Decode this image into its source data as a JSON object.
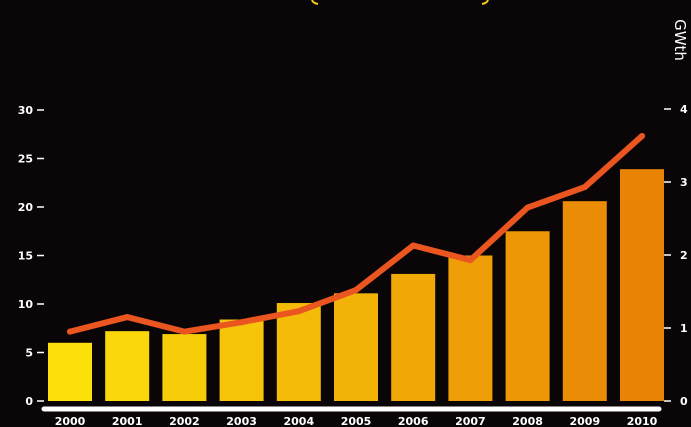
{
  "chart_data": {
    "type": "bar",
    "categories": [
      "2000",
      "2001",
      "2002",
      "2003",
      "2004",
      "2005",
      "2006",
      "2007",
      "2008",
      "2009",
      "2010"
    ],
    "series": [
      {
        "type": "bar",
        "axis": "left",
        "values": [
          6,
          7.2,
          6.9,
          8.4,
          10.1,
          11.1,
          13.1,
          15,
          17.5,
          20.6,
          23.9
        ]
      },
      {
        "type": "line",
        "axis": "right",
        "values": [
          0.95,
          1.15,
          0.95,
          1.08,
          1.23,
          1.52,
          2.13,
          1.93,
          2.65,
          2.93,
          3.63
        ]
      }
    ],
    "left_axis": {
      "ylim": [
        0,
        30
      ],
      "ticks": [
        0,
        5,
        10,
        15,
        20,
        25,
        30
      ]
    },
    "right_axis": {
      "label": "GWth",
      "ylim": [
        0,
        4
      ],
      "ticks": [
        0,
        1,
        2,
        3,
        4
      ]
    },
    "colors": {
      "background": "#0a0608",
      "bar_start": "#fbe00a",
      "bar_end": "#e98305",
      "line": "#ea5520",
      "axis": "#ffffff"
    }
  }
}
